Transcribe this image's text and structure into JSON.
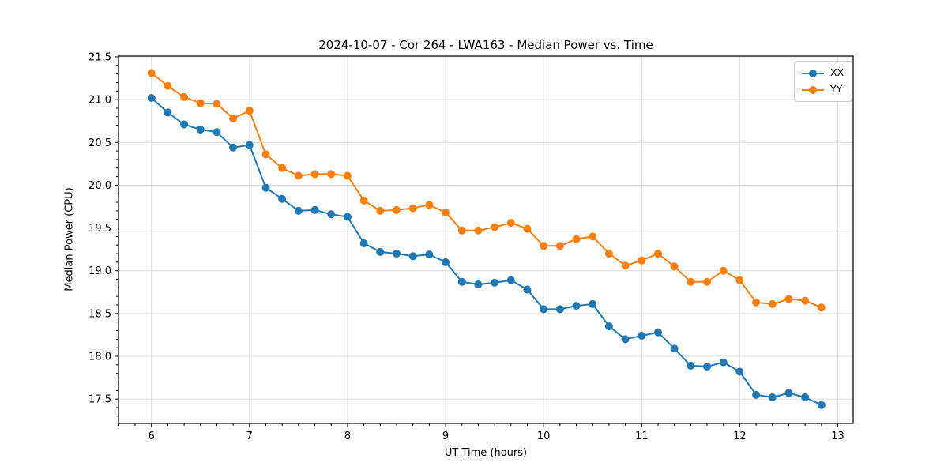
{
  "title": "2024-10-07 - Cor 264 - LWA163 - Median Power vs. Time",
  "legend": {
    "items": [
      {
        "label": "XX",
        "color": "#1f77b4"
      },
      {
        "label": "YY",
        "color": "#ff7f0e"
      }
    ]
  },
  "colors": {
    "series_xx": "#1f77b4",
    "series_yy": "#ff7f0e",
    "grid": "#dcdcdc",
    "spine": "#000000",
    "text": "#000000"
  },
  "chart_data": {
    "type": "line",
    "title": "2024-10-07 - Cor 264 - LWA163 - Median Power vs. Time",
    "xlabel": "UT Time (hours)",
    "ylabel": "Median Power (CPU)",
    "xlim": [
      5.664,
      13.157
    ],
    "ylim": [
      17.215,
      21.509
    ],
    "x_ticks": [
      6,
      7,
      8,
      9,
      10,
      11,
      12,
      13
    ],
    "y_ticks": [
      17.5,
      18.0,
      18.5,
      19.0,
      19.5,
      20.0,
      20.5,
      21.0,
      21.5
    ],
    "x_minor_step": 0.166667,
    "y_minor_step": 0.1,
    "grid": "major",
    "legend_position": "upper right",
    "marker": "o",
    "x": [
      6.0,
      6.167,
      6.333,
      6.5,
      6.667,
      6.833,
      7.0,
      7.167,
      7.333,
      7.5,
      7.667,
      7.833,
      8.0,
      8.167,
      8.333,
      8.5,
      8.667,
      8.833,
      9.0,
      9.167,
      9.333,
      9.5,
      9.667,
      9.833,
      10.0,
      10.167,
      10.333,
      10.5,
      10.667,
      10.833,
      11.0,
      11.167,
      11.333,
      11.5,
      11.667,
      11.833,
      12.0,
      12.167,
      12.333,
      12.5,
      12.667,
      12.833
    ],
    "series": [
      {
        "name": "XX",
        "color": "#1f77b4",
        "values": [
          21.02,
          20.85,
          20.71,
          20.65,
          20.62,
          20.44,
          20.47,
          19.97,
          19.84,
          19.7,
          19.71,
          19.66,
          19.63,
          19.32,
          19.22,
          19.2,
          19.17,
          19.19,
          19.1,
          18.87,
          18.84,
          18.86,
          18.89,
          18.78,
          18.55,
          18.55,
          18.59,
          18.61,
          18.35,
          18.2,
          18.24,
          18.28,
          18.09,
          17.89,
          17.88,
          17.93,
          17.82,
          17.55,
          17.52,
          17.57,
          17.52,
          17.43
        ]
      },
      {
        "name": "YY",
        "color": "#ff7f0e",
        "values": [
          21.31,
          21.16,
          21.03,
          20.96,
          20.95,
          20.78,
          20.87,
          20.36,
          20.2,
          20.11,
          20.13,
          20.13,
          20.11,
          19.82,
          19.7,
          19.71,
          19.73,
          19.77,
          19.68,
          19.47,
          19.47,
          19.51,
          19.56,
          19.49,
          19.29,
          19.29,
          19.37,
          19.4,
          19.2,
          19.06,
          19.12,
          19.2,
          19.05,
          18.87,
          18.87,
          19.0,
          18.89,
          18.63,
          18.61,
          18.67,
          18.65,
          18.57
        ]
      }
    ]
  }
}
